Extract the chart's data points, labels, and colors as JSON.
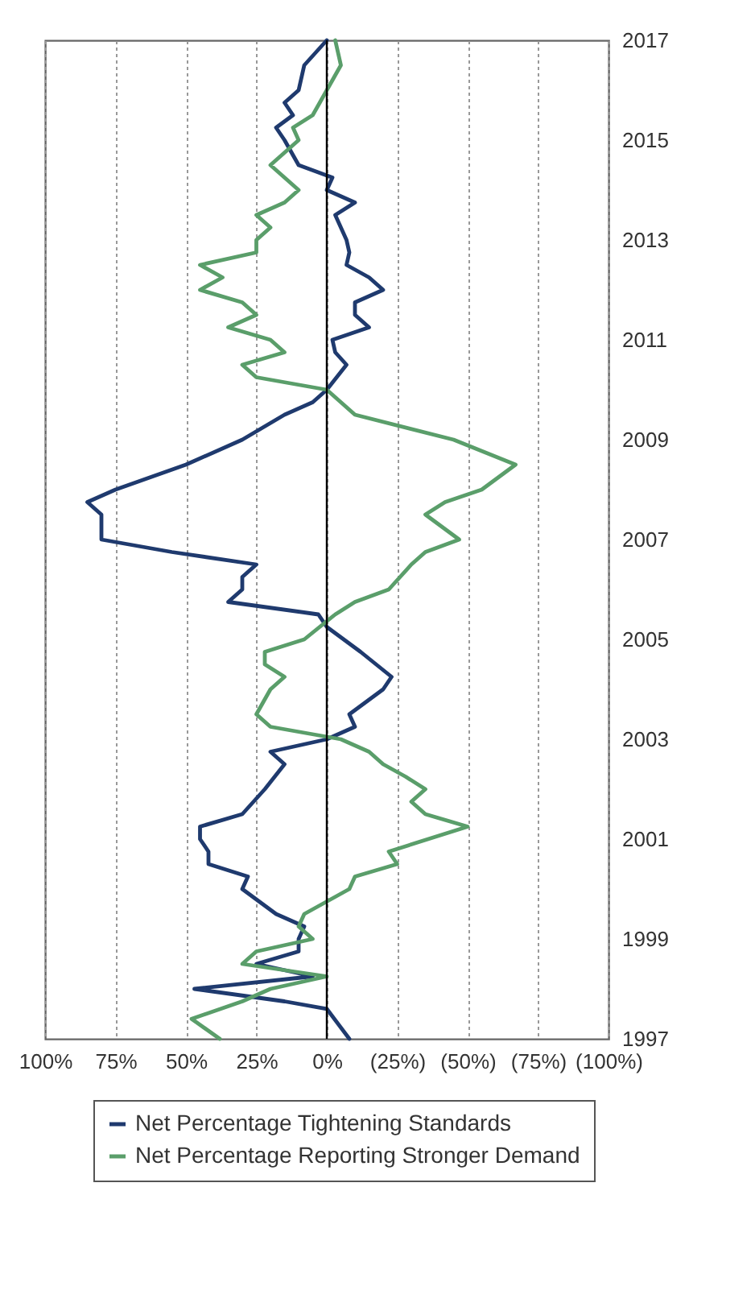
{
  "chart_data": {
    "type": "line",
    "xlim": [
      100,
      -100
    ],
    "xticks": [
      {
        "value": 100,
        "label": "100%"
      },
      {
        "value": 75,
        "label": "75%"
      },
      {
        "value": 50,
        "label": "50%"
      },
      {
        "value": 25,
        "label": "25%"
      },
      {
        "value": 0,
        "label": "0%"
      },
      {
        "value": -25,
        "label": "(25%)"
      },
      {
        "value": -50,
        "label": "(50%)"
      },
      {
        "value": -75,
        "label": "(75%)"
      },
      {
        "value": -100,
        "label": "(100%)"
      }
    ],
    "ylim": [
      1997,
      2017
    ],
    "yticks": [
      1997,
      1999,
      2001,
      2003,
      2005,
      2007,
      2009,
      2011,
      2013,
      2015,
      2017
    ],
    "grid": "x",
    "legend": "bottom",
    "ref_lines": [
      {
        "axis": "x",
        "value": 0,
        "color": "#000000"
      }
    ],
    "series": [
      {
        "name": "Net Percentage Tightening Standards",
        "color": "#1f3a6e",
        "x": [
          -8,
          0,
          15,
          47,
          5,
          25,
          10,
          10,
          8,
          18,
          30,
          28,
          42,
          42,
          45,
          45,
          30,
          22,
          15,
          20,
          0,
          -10,
          -8,
          -20,
          -23,
          -12,
          0,
          3,
          35,
          30,
          30,
          25,
          55,
          80,
          80,
          85,
          75,
          50,
          30,
          15,
          5,
          0,
          -7,
          -3,
          -2,
          -15,
          -10,
          -10,
          -20,
          -15,
          -7,
          -8,
          -7,
          -3,
          -10,
          0,
          -2,
          10,
          15,
          18,
          12,
          15,
          10,
          8,
          0
        ],
        "values": [
          1997.0,
          1997.6,
          1997.75,
          1998.0,
          1998.25,
          1998.5,
          1998.75,
          1999.0,
          1999.25,
          1999.5,
          2000.0,
          2000.25,
          2000.5,
          2000.75,
          2001.0,
          2001.25,
          2001.5,
          2002.0,
          2002.5,
          2002.75,
          2003.0,
          2003.25,
          2003.5,
          2004.0,
          2004.25,
          2004.75,
          2005.25,
          2005.5,
          2005.75,
          2006.0,
          2006.25,
          2006.5,
          2006.75,
          2007.0,
          2007.5,
          2007.75,
          2008.0,
          2008.5,
          2009.0,
          2009.5,
          2009.75,
          2010.0,
          2010.5,
          2010.75,
          2011.0,
          2011.25,
          2011.5,
          2011.75,
          2012.0,
          2012.25,
          2012.5,
          2012.75,
          2013.0,
          2013.5,
          2013.75,
          2014.0,
          2014.25,
          2014.5,
          2015.0,
          2015.25,
          2015.5,
          2015.75,
          2016.0,
          2016.5,
          2017.0
        ]
      },
      {
        "name": "Net Percentage Reporting Stronger Demand",
        "color": "#5a9e6a",
        "x": [
          38,
          48,
          30,
          20,
          0,
          30,
          25,
          5,
          10,
          8,
          0,
          -8,
          -10,
          -25,
          -22,
          -50,
          -35,
          -30,
          -35,
          -28,
          -20,
          -15,
          -5,
          20,
          25,
          20,
          15,
          22,
          22,
          8,
          -3,
          -10,
          -22,
          -30,
          -35,
          -47,
          -35,
          -42,
          -55,
          -67,
          -45,
          -10,
          -5,
          0,
          25,
          30,
          15,
          20,
          35,
          25,
          30,
          45,
          37,
          45,
          25,
          25,
          20,
          25,
          15,
          10,
          15,
          20,
          10,
          12,
          5,
          0,
          -5,
          -3
        ],
        "values": [
          1997.0,
          1997.4,
          1997.75,
          1998.0,
          1998.25,
          1998.5,
          1998.75,
          1999.0,
          1999.25,
          1999.5,
          1999.75,
          2000.0,
          2000.25,
          2000.5,
          2000.75,
          2001.25,
          2001.5,
          2001.75,
          2002.0,
          2002.25,
          2002.5,
          2002.75,
          2003.0,
          2003.25,
          2003.5,
          2004.0,
          2004.25,
          2004.5,
          2004.75,
          2005.0,
          2005.5,
          2005.75,
          2006.0,
          2006.5,
          2006.75,
          2007.0,
          2007.5,
          2007.75,
          2008.0,
          2008.5,
          2009.0,
          2009.5,
          2009.75,
          2010.0,
          2010.25,
          2010.5,
          2010.75,
          2011.0,
          2011.25,
          2011.5,
          2011.75,
          2012.0,
          2012.25,
          2012.5,
          2012.75,
          2013.0,
          2013.25,
          2013.5,
          2013.75,
          2014.0,
          2014.25,
          2014.5,
          2015.0,
          2015.25,
          2015.5,
          2016.0,
          2016.5,
          2017.0
        ]
      }
    ]
  }
}
